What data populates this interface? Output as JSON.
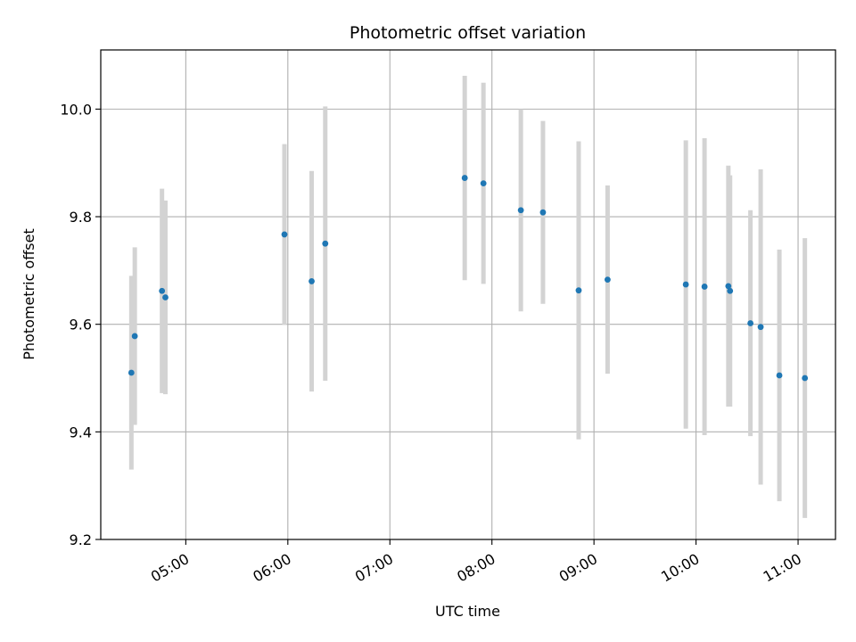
{
  "chart_data": {
    "type": "scatter",
    "title": "Photometric offset variation",
    "xlabel": "UTC time",
    "ylabel": "Photometric offset",
    "x_axis": {
      "range": [
        "04:10",
        "11:22"
      ],
      "ticks": [
        "05:00",
        "06:00",
        "07:00",
        "08:00",
        "09:00",
        "10:00",
        "11:00"
      ]
    },
    "y_axis": {
      "range": [
        9.2,
        10.11
      ],
      "ticks": [
        "9.2",
        "9.4",
        "9.6",
        "9.8",
        "10.0"
      ]
    },
    "grid": true,
    "legend": "none",
    "colors": {
      "points": "#1f77b4",
      "errorbars": "#d3d3d3",
      "grid": "#b0b0b0"
    },
    "points": [
      {
        "x": "04:28",
        "y": 9.51,
        "err": 0.18
      },
      {
        "x": "04:30",
        "y": 9.578,
        "err": 0.165
      },
      {
        "x": "04:46",
        "y": 9.662,
        "err": 0.19
      },
      {
        "x": "04:48",
        "y": 9.65,
        "err": 0.18
      },
      {
        "x": "05:58",
        "y": 9.767,
        "err": 0.168
      },
      {
        "x": "06:14",
        "y": 9.68,
        "err": 0.205
      },
      {
        "x": "06:22",
        "y": 9.75,
        "err": 0.255
      },
      {
        "x": "07:44",
        "y": 9.872,
        "err": 0.19
      },
      {
        "x": "07:55",
        "y": 9.862,
        "err": 0.187
      },
      {
        "x": "08:17",
        "y": 9.812,
        "err": 0.188
      },
      {
        "x": "08:30",
        "y": 9.808,
        "err": 0.17
      },
      {
        "x": "08:51",
        "y": 9.663,
        "err": 0.277
      },
      {
        "x": "09:08",
        "y": 9.683,
        "err": 0.175
      },
      {
        "x": "09:54",
        "y": 9.674,
        "err": 0.268
      },
      {
        "x": "10:05",
        "y": 9.67,
        "err": 0.276
      },
      {
        "x": "10:19",
        "y": 9.671,
        "err": 0.224
      },
      {
        "x": "10:20",
        "y": 9.662,
        "err": 0.215
      },
      {
        "x": "10:32",
        "y": 9.602,
        "err": 0.21
      },
      {
        "x": "10:38",
        "y": 9.595,
        "err": 0.293
      },
      {
        "x": "10:49",
        "y": 9.505,
        "err": 0.234
      },
      {
        "x": "11:04",
        "y": 9.5,
        "err": 0.26
      }
    ]
  }
}
